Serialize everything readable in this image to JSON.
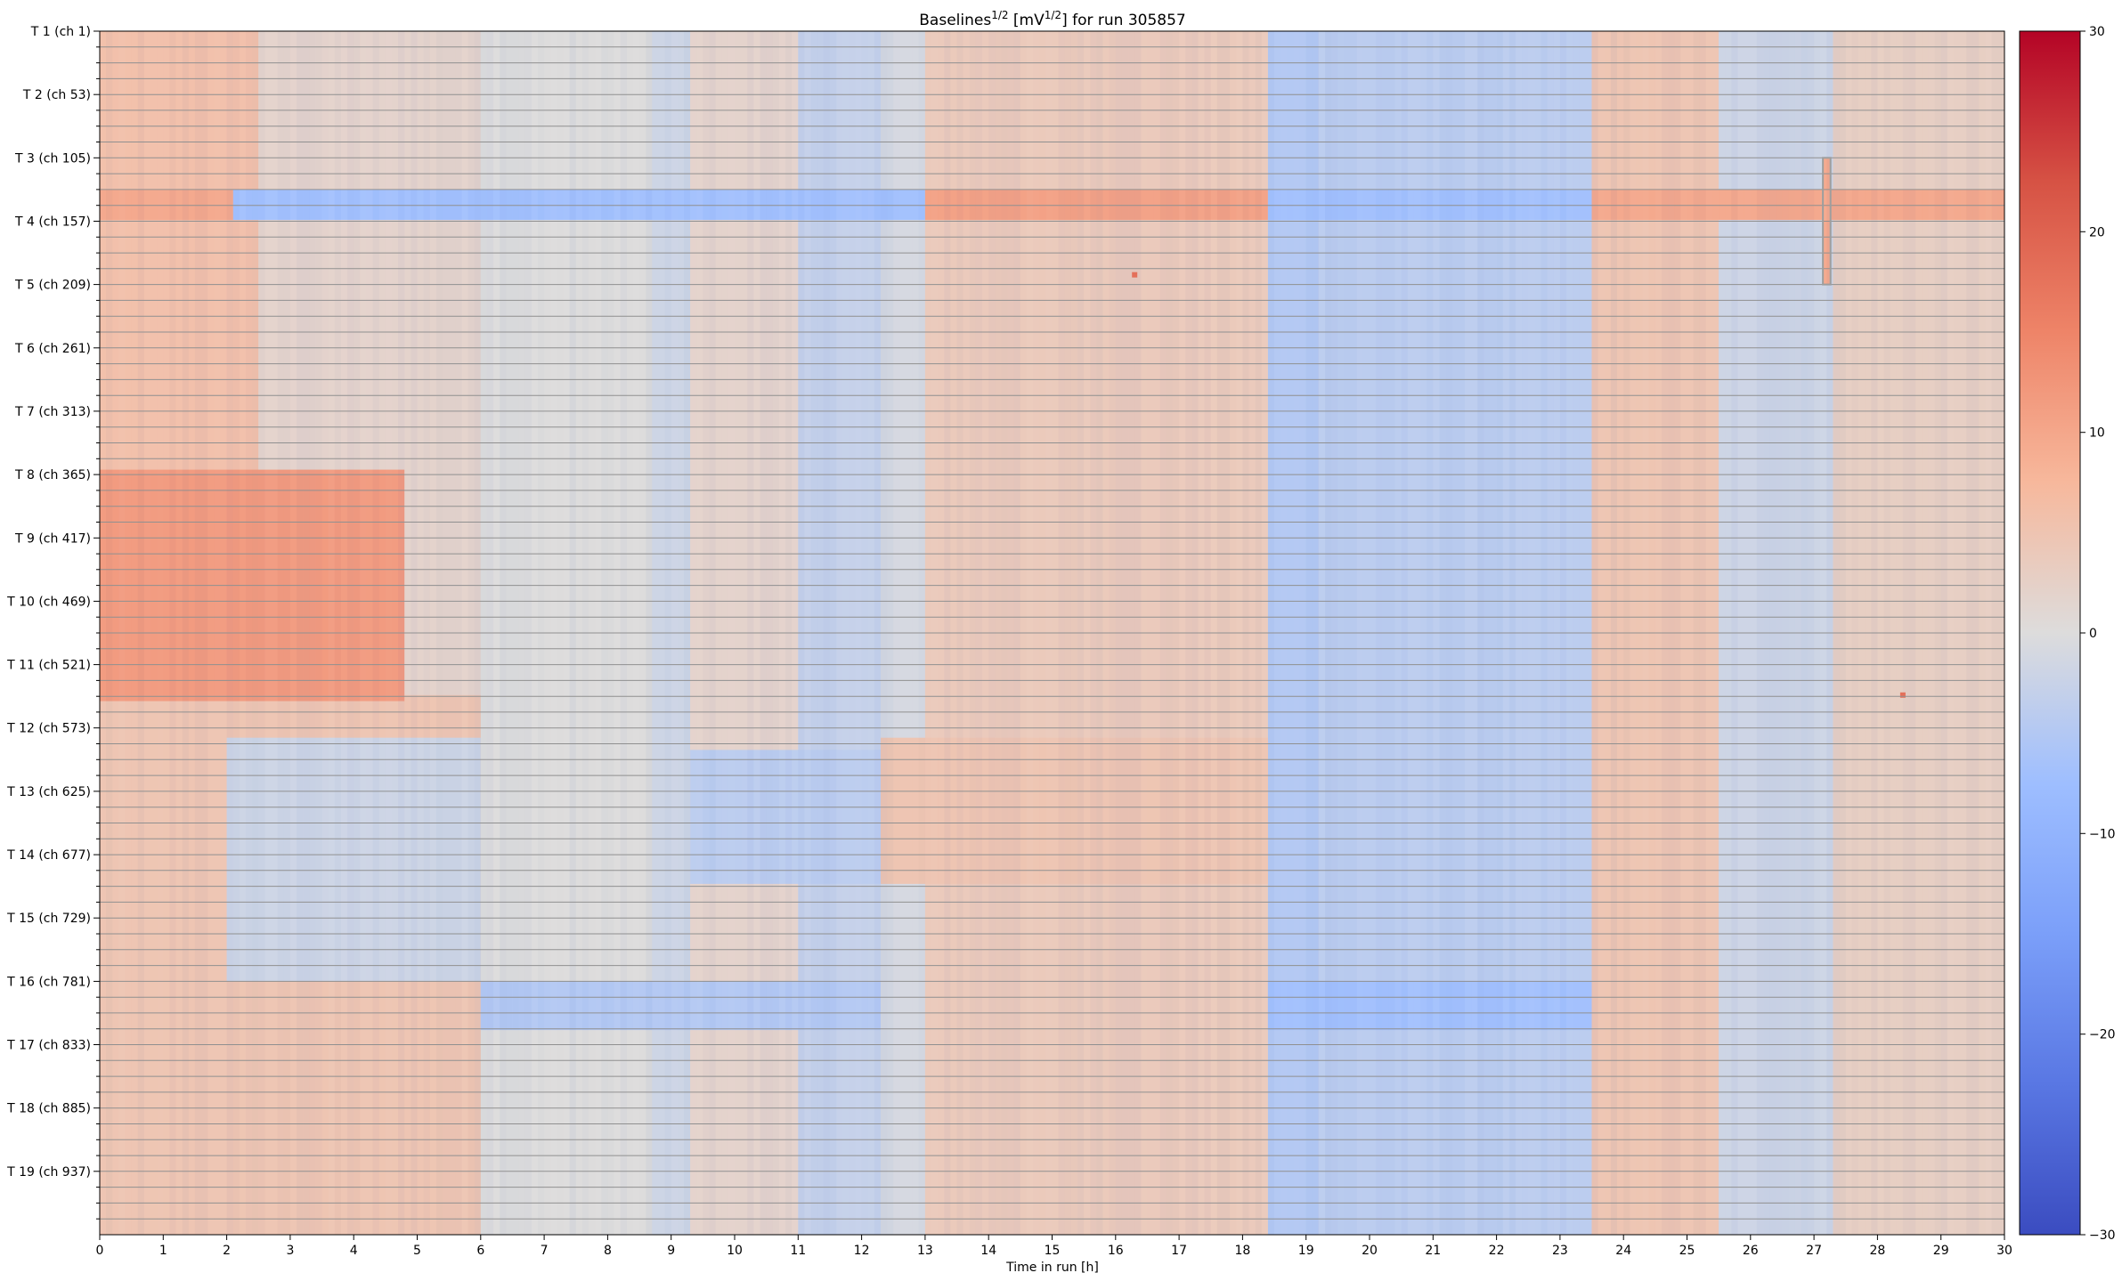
{
  "chart_data": {
    "type": "heatmap",
    "title_prefix": "Baselines",
    "title_sup1": "1/2",
    "title_mid": " [mV",
    "title_sup2": "1/2",
    "title_suffix": "] for run 305857",
    "xlabel": "Time in run [h]",
    "xlim": [
      0,
      30
    ],
    "x_ticks": [
      0,
      1,
      2,
      3,
      4,
      5,
      6,
      7,
      8,
      9,
      10,
      11,
      12,
      13,
      14,
      15,
      16,
      17,
      18,
      19,
      20,
      21,
      22,
      23,
      24,
      25,
      26,
      27,
      28,
      29,
      30
    ],
    "n_rows": 988,
    "rows_per_tower": 52,
    "y_tick_labels": [
      "T 1 (ch 1)",
      "T 2 (ch 53)",
      "T 3 (ch 105)",
      "T 4 (ch 157)",
      "T 5 (ch 209)",
      "T 6 (ch 261)",
      "T 7 (ch 313)",
      "T 8 (ch 365)",
      "T 9 (ch 417)",
      "T 10 (ch 469)",
      "T 11 (ch 521)",
      "T 12 (ch 573)",
      "T 13 (ch 625)",
      "T 14 (ch 677)",
      "T 15 (ch 729)",
      "T 16 (ch 781)",
      "T 17 (ch 833)",
      "T 18 (ch 885)",
      "T 19 (ch 937)"
    ],
    "minor_ticks_per_tower": 4,
    "colorbar": {
      "colormap": "coolwarm",
      "vmin": -30,
      "vmax": 30,
      "ticks": [
        30,
        20,
        10,
        0,
        -10,
        -20,
        -30
      ]
    },
    "colors": {
      "cold": "#3b4cc0",
      "neutral": "#dddddd",
      "warm": "#b40426",
      "row_divider": "#909090",
      "outlier_box": "#9e9e9e"
    },
    "regions": [
      {
        "t": [
          0,
          2.5
        ],
        "rows": [
          0,
          988
        ],
        "value": 6
      },
      {
        "t": [
          2.5,
          6.0
        ],
        "rows": [
          0,
          988
        ],
        "value": 2
      },
      {
        "t": [
          6.0,
          8.7
        ],
        "rows": [
          0,
          988
        ],
        "value": 0
      },
      {
        "t": [
          8.7,
          9.3
        ],
        "rows": [
          0,
          988
        ],
        "value": -2
      },
      {
        "t": [
          9.3,
          11.0
        ],
        "rows": [
          0,
          988
        ],
        "value": 2
      },
      {
        "t": [
          11.0,
          12.3
        ],
        "rows": [
          0,
          988
        ],
        "value": -3
      },
      {
        "t": [
          12.3,
          13.0
        ],
        "rows": [
          0,
          988
        ],
        "value": -1
      },
      {
        "t": [
          13.0,
          18.4
        ],
        "rows": [
          0,
          988
        ],
        "value": 4
      },
      {
        "t": [
          18.4,
          19.2
        ],
        "rows": [
          0,
          988
        ],
        "value": -5
      },
      {
        "t": [
          19.2,
          23.5
        ],
        "rows": [
          0,
          988
        ],
        "value": -4
      },
      {
        "t": [
          23.5,
          25.5
        ],
        "rows": [
          0,
          988
        ],
        "value": 5
      },
      {
        "t": [
          25.5,
          27.3
        ],
        "rows": [
          0,
          988
        ],
        "value": -2
      },
      {
        "t": [
          27.3,
          30.0
        ],
        "rows": [
          0,
          988
        ],
        "value": 3
      },
      {
        "t": [
          0,
          6.0
        ],
        "rows": [
          545,
          988
        ],
        "value": 5
      },
      {
        "t": [
          2.0,
          6.0
        ],
        "rows": [
          580,
          780
        ],
        "value": -2
      },
      {
        "t": [
          9.3,
          12.3
        ],
        "rows": [
          590,
          700
        ],
        "value": -4
      },
      {
        "t": [
          12.3,
          18.4
        ],
        "rows": [
          580,
          700
        ],
        "value": 5
      },
      {
        "t": [
          18.4,
          23.5
        ],
        "rows": [
          780,
          820
        ],
        "value": -7
      },
      {
        "t": [
          6.0,
          12.3
        ],
        "rows": [
          780,
          820
        ],
        "value": -5
      },
      {
        "t": [
          0,
          4.8
        ],
        "rows": [
          360,
          550
        ],
        "value": 12
      },
      {
        "t": [
          2.1,
          13.0
        ],
        "rows": [
          130,
          155
        ],
        "value": -7
      },
      {
        "t": [
          13.0,
          18.4
        ],
        "rows": [
          130,
          155
        ],
        "value": 11
      },
      {
        "t": [
          18.4,
          23.5
        ],
        "rows": [
          130,
          155
        ],
        "value": -7
      },
      {
        "t": [
          23.5,
          30.0
        ],
        "rows": [
          130,
          155
        ],
        "value": 10
      },
      {
        "t": [
          0,
          2.1
        ],
        "rows": [
          130,
          155
        ],
        "value": 10
      },
      {
        "t": [
          27.15,
          27.25
        ],
        "rows": [
          104,
          208
        ],
        "value": 10
      }
    ],
    "outlier_points": [
      {
        "t": 16.3,
        "row": 200,
        "value": 18
      },
      {
        "t": 28.4,
        "row": 545,
        "value": 18
      }
    ],
    "outlier_box": {
      "t": [
        27.14,
        27.26
      ],
      "rows": [
        104,
        208
      ]
    }
  }
}
